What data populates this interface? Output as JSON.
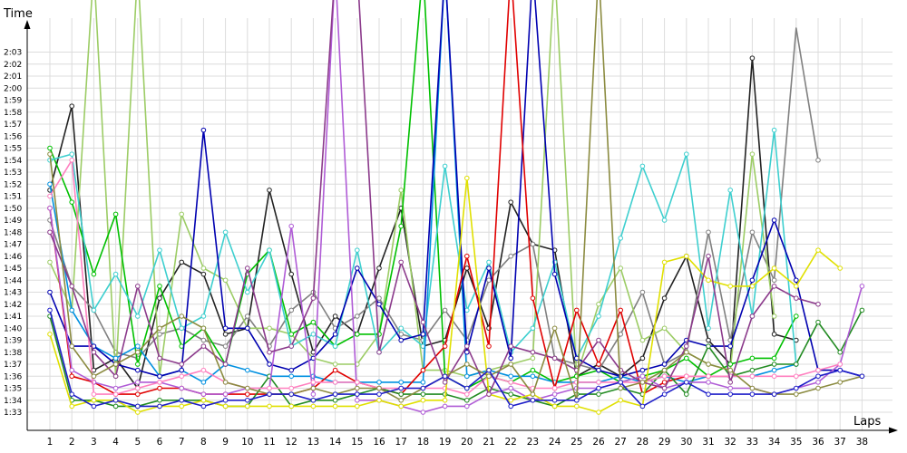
{
  "chart_data": {
    "type": "line",
    "ylabel": "Time",
    "xlabel": "Laps",
    "x": [
      1,
      2,
      3,
      4,
      5,
      6,
      7,
      8,
      9,
      10,
      11,
      12,
      13,
      14,
      15,
      16,
      17,
      18,
      19,
      20,
      21,
      22,
      23,
      24,
      25,
      26,
      27,
      28,
      29,
      30,
      31,
      32,
      33,
      34,
      35,
      36,
      37,
      38
    ],
    "y_ticks": [
      "1:33",
      "1:34",
      "1:35",
      "1:36",
      "1:37",
      "1:38",
      "1:39",
      "1:40",
      "1:41",
      "1:42",
      "1:43",
      "1:44",
      "1:45",
      "1:46",
      "1:47",
      "1:48",
      "1:49",
      "1:50",
      "1:51",
      "1:52",
      "1:53",
      "1:54",
      "1:55",
      "1:56",
      "1:57",
      "1:58",
      "1:59",
      "2:00",
      "2:01",
      "2:02",
      "2:03"
    ],
    "ylim_seconds": [
      92,
      124
    ],
    "grid": true,
    "series": [
      {
        "color": "#222222",
        "values": [
          111.5,
          118.5,
          96.5,
          97.5,
          95,
          102.5,
          105.5,
          104.5,
          99.5,
          100,
          111.5,
          104.5,
          98,
          101,
          99.5,
          105,
          110,
          98.5,
          99,
          105,
          100,
          110.5,
          107,
          106.5,
          96,
          97,
          96,
          97.5,
          102.5,
          106,
          99,
          97,
          122.5,
          99.5,
          99,
          null,
          null,
          null
        ]
      },
      {
        "color": "#808080",
        "values": [
          109,
          103.5,
          101.5,
          98,
          97.5,
          99.5,
          100,
          99,
          98.5,
          101,
          98.5,
          101.5,
          103,
          100,
          101,
          102.5,
          99.5,
          99,
          101.5,
          99,
          104,
          106,
          107,
          97.5,
          97,
          96.5,
          99.5,
          103,
          97,
          98,
          108,
          99,
          108,
          104,
          125,
          114,
          null,
          null
        ]
      },
      {
        "color": "#9ccc65",
        "values": [
          105.5,
          101.5,
          130,
          96,
          130,
          96,
          109.5,
          105,
          104,
          100,
          100,
          99.5,
          97.5,
          97,
          97,
          99.5,
          111.5,
          96.5,
          96.5,
          96,
          96.5,
          97,
          97.5,
          130,
          96,
          102,
          105,
          99,
          100,
          98,
          97,
          96.5,
          114.5,
          101,
          null,
          null,
          null,
          null
        ]
      },
      {
        "color": "#00c000",
        "values": [
          115,
          110.5,
          104.5,
          109.5,
          97,
          103.5,
          98.5,
          100,
          97,
          104.5,
          106.5,
          99.5,
          100.5,
          98.5,
          99.5,
          99.5,
          108.5,
          130,
          96,
          95,
          96,
          95.5,
          96.5,
          95.5,
          96,
          96.5,
          95.5,
          96,
          96.5,
          97.5,
          96,
          97,
          97.5,
          97.5,
          101,
          null,
          null,
          null
        ]
      },
      {
        "color": "#3ecfcf",
        "values": [
          114,
          114.5,
          101.5,
          104.5,
          101,
          106.5,
          100,
          101,
          108,
          103,
          106.5,
          98.5,
          99.5,
          98.5,
          106.5,
          98,
          100,
          98.5,
          113.5,
          101.5,
          105.5,
          98,
          100,
          105.5,
          97.5,
          101,
          107.5,
          113.5,
          109,
          114.5,
          100,
          111.5,
          101,
          116.5,
          97,
          null,
          null,
          null
        ]
      },
      {
        "color": "#0090e0",
        "values": [
          112,
          101.5,
          98.5,
          97.5,
          98.5,
          96,
          96.5,
          95.5,
          97,
          96.5,
          96,
          96,
          96,
          95.5,
          95.5,
          95.5,
          95.5,
          95.5,
          130,
          96,
          96.5,
          96,
          96,
          95.5,
          95.5,
          95.5,
          96,
          95.5,
          96,
          95.5,
          96,
          96,
          96,
          96.5,
          97,
          null,
          null,
          null
        ]
      },
      {
        "color": "#0000b0",
        "values": [
          103,
          98.5,
          98.5,
          97,
          96.5,
          96,
          96.5,
          116.5,
          100,
          100,
          97,
          96.5,
          97.5,
          99.5,
          105,
          102,
          99,
          99.5,
          130,
          98,
          105,
          97.5,
          130,
          104.5,
          97.5,
          96.5,
          96,
          96.5,
          97,
          99,
          98.5,
          98.5,
          104,
          109,
          104,
          96.5,
          96.5,
          96
        ]
      },
      {
        "color": "#e00000",
        "values": [
          110,
          96,
          95.5,
          94.5,
          94.5,
          95,
          95,
          94.5,
          94.5,
          94.5,
          94.5,
          94.5,
          95,
          96.5,
          95.5,
          95,
          94.5,
          96.5,
          98.5,
          106,
          98.5,
          130,
          102.5,
          95,
          101.5,
          97,
          101.5,
          94.5,
          95.5,
          96,
          96,
          96,
          null,
          null,
          null,
          null,
          null,
          null
        ]
      },
      {
        "color": "#228b22",
        "values": [
          101,
          94,
          94,
          93.5,
          93.5,
          94,
          94,
          94,
          93.5,
          93.5,
          96,
          93.5,
          94,
          94,
          94.5,
          95,
          94.5,
          94.5,
          94.5,
          94,
          95,
          94.5,
          94,
          93.5,
          94.5,
          94.5,
          95,
          94.5,
          96.5,
          94.5,
          98.5,
          96,
          96.5,
          97,
          97,
          100.5,
          98,
          101.5
        ]
      },
      {
        "color": "#b05cd6",
        "values": [
          110,
          96.5,
          95.5,
          95,
          95.5,
          95.5,
          95,
          94.5,
          94.5,
          95,
          95,
          108.5,
          94.5,
          130,
          94,
          94,
          93.5,
          93,
          93.5,
          93.5,
          94.5,
          95,
          94,
          94.5,
          95,
          95,
          95.5,
          96,
          95,
          95.5,
          95.5,
          95,
          95,
          94.5,
          95,
          95.5,
          97,
          103.5
        ]
      },
      {
        "color": "#ff80c0",
        "values": [
          111,
          114,
          94.5,
          94.5,
          95,
          95.5,
          96,
          96.5,
          95.5,
          95,
          95,
          95,
          95.5,
          95.5,
          95.5,
          95,
          95,
          95,
          95,
          94.5,
          96,
          95.5,
          95,
          95,
          95.5,
          95.5,
          95.5,
          95.5,
          96,
          96,
          96,
          96,
          96,
          96,
          96,
          96.5,
          97,
          null
        ]
      },
      {
        "color": "#e0e000",
        "values": [
          99.5,
          93.5,
          94,
          94,
          93,
          93.5,
          93.5,
          94,
          93.5,
          93.5,
          93.5,
          93.5,
          93.5,
          93.5,
          93.5,
          94,
          93.5,
          94,
          94,
          112.5,
          94.5,
          94,
          94.5,
          93.5,
          93.5,
          93,
          94,
          93.5,
          105.5,
          106,
          104,
          103.5,
          103.5,
          105,
          103.5,
          106.5,
          105,
          null
        ]
      },
      {
        "color": "#8b3a8b",
        "values": [
          108,
          103.5,
          98,
          96,
          103.5,
          97.5,
          97,
          98.5,
          97,
          105,
          98,
          98.5,
          102.5,
          130,
          130,
          98,
          105.5,
          100.5,
          95.5,
          98.5,
          94.5,
          98.5,
          98,
          97.5,
          96.5,
          99,
          96.5,
          95.5,
          95,
          98.5,
          106,
          95.5,
          101,
          103.5,
          102.5,
          102,
          null,
          null
        ]
      },
      {
        "color": "#8b8b40",
        "values": [
          114.5,
          98.5,
          96,
          97,
          98,
          100,
          101,
          100,
          95.5,
          95,
          94.5,
          94.5,
          95,
          94.5,
          95,
          95,
          94,
          95,
          96,
          97,
          96,
          97,
          94.5,
          100,
          94,
          130,
          95,
          95.5,
          96.5,
          98,
          97,
          96.5,
          95,
          94.5,
          94.5,
          95,
          95.5,
          96
        ]
      },
      {
        "color": "#1e1ec8",
        "values": [
          101.5,
          94.5,
          93.5,
          94,
          93.5,
          93.5,
          94,
          93.5,
          94,
          94,
          94.5,
          94.5,
          94,
          94.5,
          94.5,
          94.5,
          95,
          95,
          96,
          95,
          96.5,
          93.5,
          94,
          94,
          94,
          95,
          95.5,
          93.5,
          94.5,
          95.5,
          94.5,
          94.5,
          94.5,
          94.5,
          95,
          96,
          96.5,
          96
        ]
      }
    ]
  }
}
